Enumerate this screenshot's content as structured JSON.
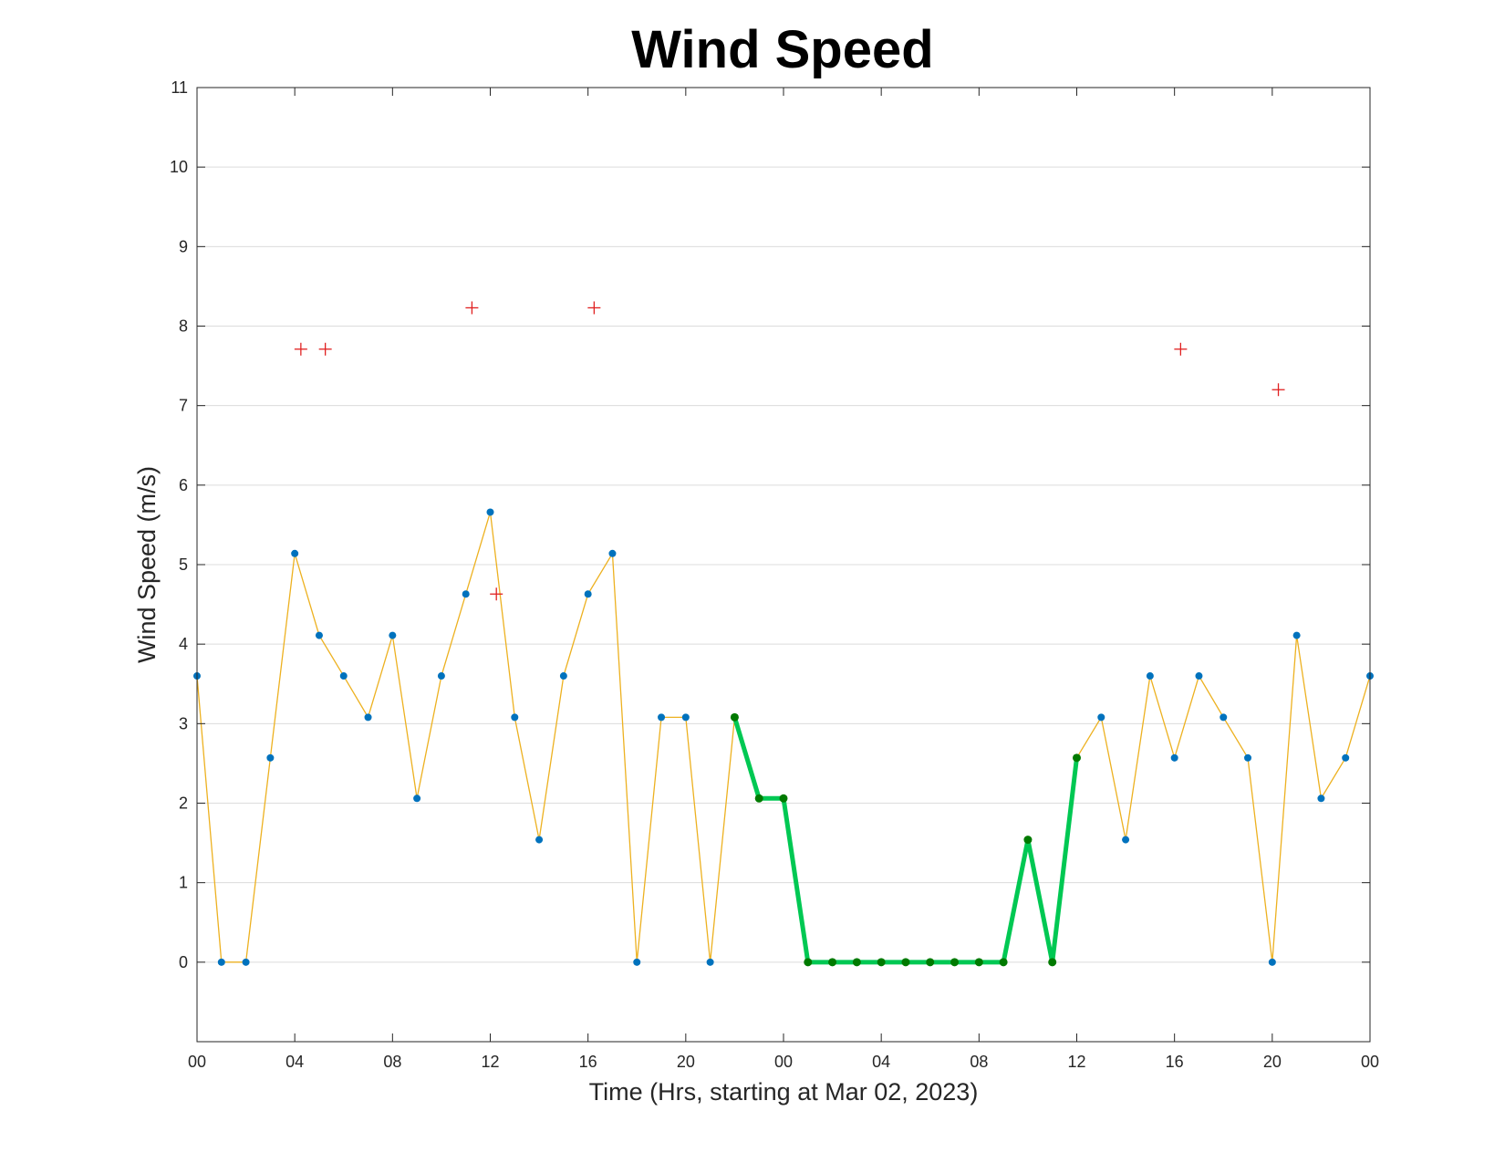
{
  "chart_data": {
    "type": "line",
    "title": "Wind Speed",
    "xlabel": "Time (Hrs, starting at Mar 02, 2023)",
    "ylabel": "Wind Speed (m/s)",
    "xlim": [
      0,
      48
    ],
    "ylim": [
      -1,
      11
    ],
    "y_ticks": [
      0,
      1,
      2,
      3,
      4,
      5,
      6,
      7,
      8,
      9,
      10,
      11
    ],
    "x_ticks": [
      0,
      4,
      8,
      12,
      16,
      20,
      24,
      28,
      32,
      36,
      40,
      44,
      48
    ],
    "x_tick_labels": [
      "00",
      "04",
      "08",
      "12",
      "16",
      "20",
      "00",
      "04",
      "08",
      "12",
      "16",
      "20",
      "00"
    ],
    "grid": true,
    "series": [
      {
        "kind": "line-with-markers",
        "color": "#EDB120",
        "marker_color": "#0072BD",
        "x": [
          0,
          1,
          2,
          3,
          4,
          5,
          6,
          7,
          8,
          9,
          10,
          11,
          12,
          13,
          14,
          15,
          16,
          17,
          18,
          19,
          20,
          21,
          22,
          23,
          24,
          25,
          26,
          27,
          28,
          29,
          30,
          31,
          32,
          33,
          34,
          35,
          36,
          37,
          38,
          39,
          40,
          41,
          42,
          43,
          44,
          45,
          46,
          47,
          48
        ],
        "values": [
          3.6,
          0,
          0,
          2.57,
          5.14,
          4.11,
          3.6,
          3.08,
          4.11,
          2.06,
          3.6,
          4.63,
          5.66,
          3.08,
          1.54,
          3.6,
          4.63,
          5.14,
          0,
          3.08,
          3.08,
          0,
          3.08,
          2.06,
          2.06,
          0,
          0,
          0,
          0,
          0,
          0,
          0,
          0,
          0,
          1.54,
          0,
          2.57,
          3.08,
          1.54,
          3.6,
          2.57,
          3.6,
          3.08,
          2.57,
          0,
          4.11,
          2.06,
          2.57,
          3.6
        ]
      },
      {
        "kind": "highlighted-segment",
        "color": "#00C853",
        "marker_color": "#007A00",
        "x": [
          22,
          23,
          24,
          25,
          26,
          27,
          28,
          29,
          30,
          31,
          32,
          33,
          34,
          35,
          36
        ],
        "values": [
          3.08,
          2.06,
          2.06,
          0,
          0,
          0,
          0,
          0,
          0,
          0,
          0,
          0,
          1.54,
          0,
          2.57
        ]
      },
      {
        "kind": "plus-markers",
        "color": "#E02020",
        "x": [
          4.25,
          5.25,
          11.25,
          12.25,
          16.25,
          40.25,
          44.25
        ],
        "values": [
          7.71,
          7.71,
          8.23,
          4.63,
          8.23,
          7.71,
          7.2
        ]
      }
    ]
  }
}
